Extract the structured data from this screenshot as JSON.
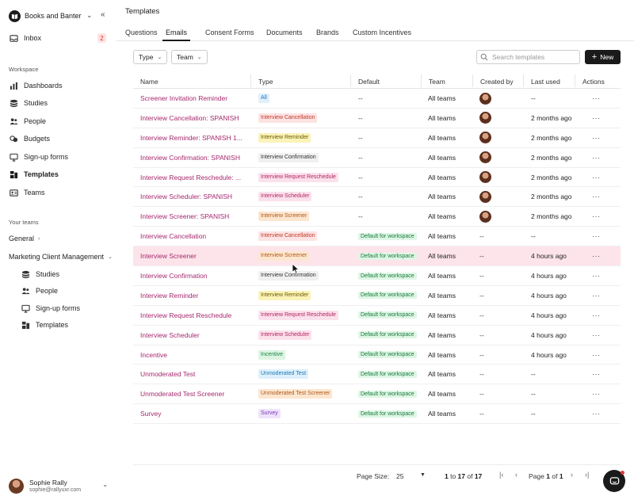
{
  "org": {
    "name": "Books and Banter"
  },
  "sidebar": {
    "inbox": {
      "label": "Inbox",
      "badge": "2"
    },
    "workspace_label": "Workspace",
    "workspace_items": [
      {
        "label": "Dashboards",
        "icon": "bar-chart-icon"
      },
      {
        "label": "Studies",
        "icon": "stack-icon"
      },
      {
        "label": "People",
        "icon": "people-icon"
      },
      {
        "label": "Budgets",
        "icon": "coins-icon"
      },
      {
        "label": "Sign-up forms",
        "icon": "monitor-icon"
      },
      {
        "label": "Templates",
        "icon": "templates-icon",
        "active": true
      },
      {
        "label": "Teams",
        "icon": "id-card-icon"
      }
    ],
    "teams_label": "Your teams",
    "general_label": "General",
    "marketing_label": "Marketing Client Management",
    "marketing_items": [
      {
        "label": "Studies"
      },
      {
        "label": "People"
      },
      {
        "label": "Sign-up forms"
      },
      {
        "label": "Templates"
      }
    ]
  },
  "user": {
    "name": "Sophie Rally",
    "email": "sophie@rallyuxr.com"
  },
  "header": {
    "title": "Templates"
  },
  "tabs": [
    "Questions",
    "Emails",
    "Consent Forms",
    "Documents",
    "Brands",
    "Custom Incentives"
  ],
  "active_tab": "Emails",
  "filters": {
    "type": "Type",
    "team": "Team"
  },
  "search": {
    "placeholder": "Search templates"
  },
  "new_button": "New",
  "columns": [
    "Name",
    "Type",
    "Default",
    "Team",
    "Created by",
    "Last used",
    "Actions"
  ],
  "rows": [
    {
      "name": "Screener Invitation Reminder",
      "type": "All",
      "type_color": "all",
      "default": "--",
      "team": "All teams",
      "created_avatar": true,
      "last_used": "--"
    },
    {
      "name": "Interview Cancellation: SPANISH",
      "type": "Interview Cancellation",
      "type_color": "red",
      "default": "--",
      "team": "All teams",
      "created_avatar": true,
      "last_used": "2 months ago"
    },
    {
      "name": "Interview Reminder: SPANISH 1...",
      "type": "Interview Reminder",
      "type_color": "yellow",
      "default": "--",
      "team": "All teams",
      "created_avatar": true,
      "last_used": "2 months ago"
    },
    {
      "name": "Interview Confirmation: SPANISH",
      "type": "Interview Confirmation",
      "type_color": "gray",
      "default": "--",
      "team": "All teams",
      "created_avatar": true,
      "last_used": "2 months ago"
    },
    {
      "name": "Interview Request Reschedule: ...",
      "type": "Interview Request Reschedule",
      "type_color": "pink",
      "default": "--",
      "team": "All teams",
      "created_avatar": true,
      "last_used": "2 months ago"
    },
    {
      "name": "Interview Scheduler: SPANISH",
      "type": "Interview Scheduler",
      "type_color": "pink",
      "default": "--",
      "team": "All teams",
      "created_avatar": true,
      "last_used": "2 months ago"
    },
    {
      "name": "Interview Screener: SPANISH",
      "type": "Interview Screener",
      "type_color": "orange",
      "default": "--",
      "team": "All teams",
      "created_avatar": true,
      "last_used": "2 months ago"
    },
    {
      "name": "Interview Cancellation",
      "type": "Interview Cancellation",
      "type_color": "red",
      "default": "Default for workspace",
      "team": "All teams",
      "created_avatar": false,
      "created_by": "--",
      "last_used": "--"
    },
    {
      "name": "Interview Screener",
      "type": "Interview Screener",
      "type_color": "orange",
      "default": "Default for workspace",
      "team": "All teams",
      "created_avatar": false,
      "created_by": "--",
      "last_used": "4 hours ago",
      "hover": true
    },
    {
      "name": "Interview Confirmation",
      "type": "Interview Confirmation",
      "type_color": "gray",
      "default": "Default for workspace",
      "team": "All teams",
      "created_avatar": false,
      "created_by": "--",
      "last_used": "4 hours ago"
    },
    {
      "name": "Interview Reminder",
      "type": "Interview Reminder",
      "type_color": "yellow",
      "default": "Default for workspace",
      "team": "All teams",
      "created_avatar": false,
      "created_by": "--",
      "last_used": "4 hours ago"
    },
    {
      "name": "Interview Request Reschedule",
      "type": "Interview Request Reschedule",
      "type_color": "pink",
      "default": "Default for workspace",
      "team": "All teams",
      "created_avatar": false,
      "created_by": "--",
      "last_used": "4 hours ago"
    },
    {
      "name": "Interview Scheduler",
      "type": "Interview Scheduler",
      "type_color": "pink",
      "default": "Default for workspace",
      "team": "All teams",
      "created_avatar": false,
      "created_by": "--",
      "last_used": "4 hours ago"
    },
    {
      "name": "Incentive",
      "type": "Incentive",
      "type_color": "green",
      "default": "Default for workspace",
      "team": "All teams",
      "created_avatar": false,
      "created_by": "--",
      "last_used": "4 hours ago"
    },
    {
      "name": "Unmoderated Test",
      "type": "Unmoderated Test",
      "type_color": "blue",
      "default": "Default for workspace",
      "team": "All teams",
      "created_avatar": false,
      "created_by": "--",
      "last_used": "--"
    },
    {
      "name": "Unmoderated Test Screener",
      "type": "Unmoderated Test Screener",
      "type_color": "orange",
      "default": "Default for workspace",
      "team": "All teams",
      "created_avatar": false,
      "created_by": "--",
      "last_used": "--"
    },
    {
      "name": "Survey",
      "type": "Survey",
      "type_color": "purple",
      "default": "Default for workspace",
      "team": "All teams",
      "created_avatar": false,
      "created_by": "--",
      "last_used": "--"
    }
  ],
  "row_actions": "···",
  "pagination": {
    "page_size_label": "Page Size:",
    "page_size": "25",
    "range_from": "1",
    "range_to": "17",
    "total": "17",
    "page_prefix": "Page",
    "page": "1",
    "page_of": "of",
    "page_total": "1"
  }
}
